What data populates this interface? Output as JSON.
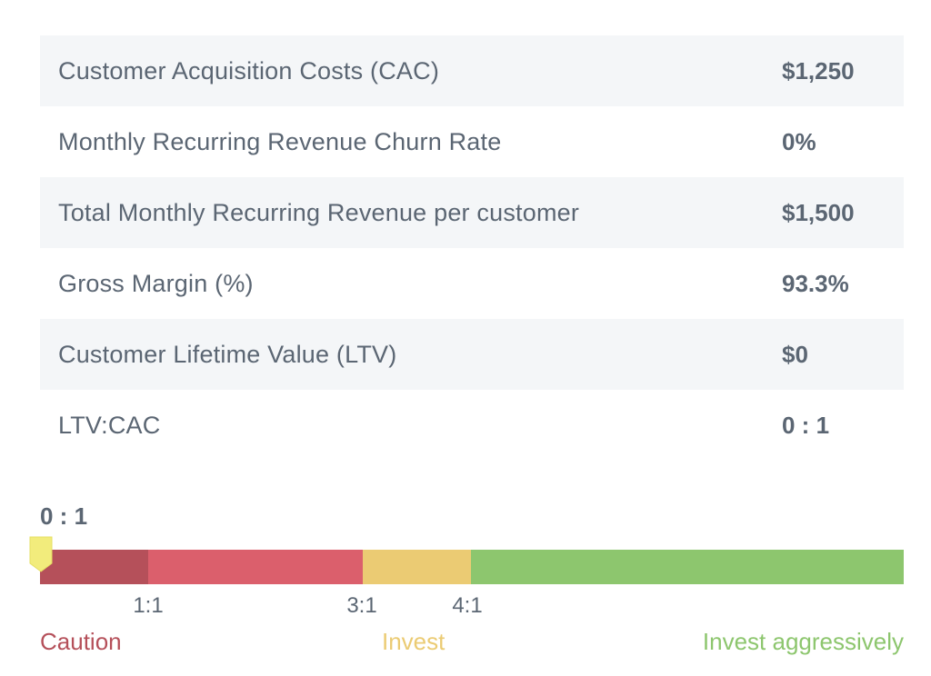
{
  "metrics": [
    {
      "label": "Customer Acquisition Costs (CAC)",
      "value": "$1,250"
    },
    {
      "label": "Monthly Recurring Revenue Churn Rate",
      "value": "0%"
    },
    {
      "label": "Total Monthly Recurring Revenue per customer",
      "value": "$1,500"
    },
    {
      "label": "Gross Margin (%)",
      "value": "93.3%"
    },
    {
      "label": "Customer Lifetime Value (LTV)",
      "value": "$0"
    },
    {
      "label": "LTV:CAC",
      "value": "0 : 1"
    }
  ],
  "gauge": {
    "current_label": "0 : 1",
    "current_ratio": 0,
    "ticks": [
      "1:1",
      "3:1",
      "4:1"
    ],
    "zones": {
      "caution": "Caution",
      "invest": "Invest",
      "aggressive": "Invest aggressively"
    },
    "colors": {
      "caution_dark": "#b5505a",
      "caution": "#db5f6c",
      "invest": "#ebcb73",
      "aggressive": "#8dc66e",
      "marker": "#f2ec7c"
    }
  }
}
